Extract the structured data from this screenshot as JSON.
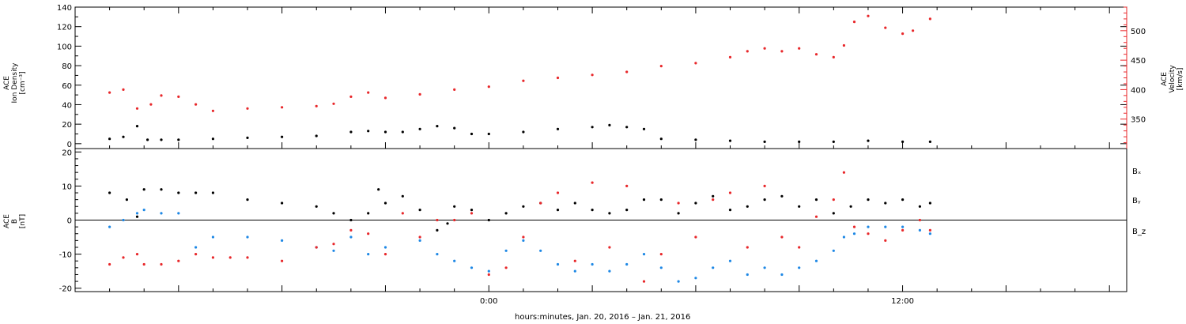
{
  "chart_data": [
    {
      "type": "scatter",
      "panel": "top",
      "ylabel_left": [
        "ACE",
        "Ion Density",
        "[cm⁻³]"
      ],
      "ylabel_right": [
        "ACE",
        "Velocity",
        "[km/s]"
      ],
      "left_axis": {
        "min": -5,
        "max": 140,
        "ticks": [
          "0",
          "20",
          "40",
          "60",
          "80",
          "100",
          "120",
          "140"
        ]
      },
      "right_axis": {
        "min": 300,
        "max": 540,
        "color": "#e8272a",
        "ticks": [
          "350",
          "400",
          "450",
          "500"
        ]
      },
      "series": [
        {
          "color": "#000000",
          "axis": "left",
          "x": [
            -11.0,
            -10.6,
            -10.2,
            -9.9,
            -9.5,
            -9.0,
            -8.0,
            -7.0,
            -6.0,
            -5.0,
            -4.0,
            -3.5,
            -3.0,
            -2.5,
            -2.0,
            -1.5,
            -1.0,
            -0.5,
            0.0,
            1.0,
            2.0,
            3.0,
            3.5,
            4.0,
            4.5,
            5.0,
            6.0,
            7.0,
            8.0,
            9.0,
            10.0,
            11.0,
            12.0,
            12.8
          ],
          "y": [
            5,
            7,
            18,
            4,
            4,
            4,
            5,
            6,
            7,
            8,
            12,
            13,
            12,
            12,
            15,
            18,
            16,
            10,
            10,
            12,
            15,
            17,
            19,
            17,
            15,
            5,
            4,
            3,
            2,
            2,
            2,
            3,
            2,
            2
          ]
        },
        {
          "color": "#e8272a",
          "axis": "right",
          "x": [
            -11.0,
            -10.6,
            -10.2,
            -9.8,
            -9.5,
            -9.0,
            -8.5,
            -8.0,
            -7.0,
            -6.0,
            -5.0,
            -4.5,
            -4.0,
            -3.5,
            -3.0,
            -2.0,
            -1.0,
            0.0,
            1.0,
            2.0,
            3.0,
            4.0,
            5.0,
            6.0,
            7.0,
            7.5,
            8.0,
            8.5,
            9.0,
            9.5,
            10.0,
            10.3,
            10.6,
            11.0,
            11.5,
            12.0,
            12.3,
            12.8
          ],
          "y": [
            395,
            400,
            368,
            375,
            390,
            388,
            375,
            364,
            368,
            370,
            372,
            376,
            388,
            395,
            386,
            392,
            400,
            405,
            415,
            420,
            425,
            430,
            440,
            445,
            455,
            465,
            470,
            465,
            470,
            460,
            455,
            475,
            515,
            525,
            505,
            495,
            500,
            520
          ]
        }
      ]
    },
    {
      "type": "scatter",
      "panel": "bottom",
      "ylabel_left": [
        "ACE",
        "B",
        "[nT]"
      ],
      "left_axis": {
        "min": -21,
        "max": 21,
        "ticks": [
          "-20",
          "-10",
          "0",
          "10",
          "20"
        ]
      },
      "legend": [
        "Bₓ",
        "Bᵧ",
        "B_z"
      ],
      "series": [
        {
          "name": "Bₓ",
          "color": "#000000",
          "x": [
            -11.0,
            -10.5,
            -10.2,
            -10.0,
            -9.5,
            -9.0,
            -8.5,
            -8.0,
            -7.0,
            -6.0,
            -5.0,
            -4.5,
            -4.0,
            -3.5,
            -3.2,
            -3.0,
            -2.5,
            -2.0,
            -1.5,
            -1.2,
            -1.0,
            -0.5,
            0.0,
            0.5,
            1.0,
            1.5,
            2.0,
            2.5,
            3.0,
            3.5,
            4.0,
            4.5,
            5.0,
            5.5,
            6.0,
            6.5,
            7.0,
            7.5,
            8.0,
            8.5,
            9.0,
            9.5,
            10.0,
            10.5,
            11.0,
            11.5,
            12.0,
            12.5,
            12.8
          ],
          "y": [
            8,
            6,
            1,
            9,
            9,
            8,
            8,
            8,
            6,
            5,
            4,
            2,
            0,
            2,
            9,
            5,
            7,
            3,
            -3,
            -1,
            4,
            3,
            0,
            2,
            4,
            5,
            3,
            5,
            3,
            2,
            3,
            6,
            6,
            2,
            5,
            7,
            3,
            4,
            6,
            7,
            4,
            6,
            2,
            4,
            6,
            5,
            6,
            4,
            5
          ]
        },
        {
          "name": "Bᵧ",
          "color": "#1e88e5",
          "x": [
            -11.0,
            -10.6,
            -10.2,
            -10.0,
            -9.5,
            -9.0,
            -8.5,
            -8.0,
            -7.0,
            -6.0,
            -5.0,
            -4.5,
            -4.0,
            -3.5,
            -3.0,
            -2.0,
            -1.5,
            -1.0,
            -0.5,
            0.0,
            0.5,
            1.0,
            1.5,
            2.0,
            2.5,
            3.0,
            3.5,
            4.0,
            4.5,
            5.0,
            5.5,
            6.0,
            6.5,
            7.0,
            7.5,
            8.0,
            8.5,
            9.0,
            9.5,
            10.0,
            10.3,
            10.6,
            11.0,
            11.5,
            12.0,
            12.5,
            12.8
          ],
          "y": [
            -2,
            0,
            2,
            3,
            2,
            2,
            -8,
            -5,
            -5,
            -6,
            -8,
            -9,
            -5,
            -10,
            -8,
            -6,
            -10,
            -12,
            -14,
            -15,
            -9,
            -6,
            -9,
            -13,
            -15,
            -13,
            -15,
            -13,
            -10,
            -14,
            -18,
            -17,
            -14,
            -12,
            -16,
            -14,
            -16,
            -14,
            -12,
            -9,
            -5,
            -4,
            -2,
            -2,
            -2,
            -3,
            -4
          ]
        },
        {
          "name": "B_z",
          "color": "#e8272a",
          "x": [
            -11.0,
            -10.6,
            -10.2,
            -10.0,
            -9.5,
            -9.0,
            -8.5,
            -8.0,
            -7.5,
            -7.0,
            -6.0,
            -5.0,
            -4.5,
            -4.0,
            -3.5,
            -3.0,
            -2.5,
            -2.0,
            -1.5,
            -1.0,
            -0.5,
            0.0,
            0.5,
            1.0,
            1.5,
            2.0,
            2.5,
            3.0,
            3.5,
            4.0,
            4.5,
            5.0,
            5.5,
            6.0,
            6.5,
            7.0,
            7.5,
            8.0,
            8.5,
            9.0,
            9.5,
            10.0,
            10.3,
            10.6,
            11.0,
            11.5,
            12.0,
            12.5,
            12.8
          ],
          "y": [
            -13,
            -11,
            -10,
            -13,
            -13,
            -12,
            -10,
            -11,
            -11,
            -11,
            -12,
            -8,
            -7,
            -3,
            -4,
            -10,
            2,
            -5,
            0,
            0,
            2,
            -16,
            -14,
            -5,
            5,
            8,
            -12,
            11,
            -8,
            10,
            -18,
            -10,
            5,
            -5,
            6,
            8,
            -8,
            10,
            -5,
            -8,
            1,
            6,
            14,
            -2,
            -4,
            -6,
            -3,
            0,
            -3
          ]
        }
      ]
    }
  ],
  "xaxis": {
    "min": -12,
    "max": 18.5,
    "tick_labels": [
      {
        "x": 0,
        "text": "0:00"
      },
      {
        "x": 12,
        "text": "12:00"
      }
    ],
    "label": "hours:minutes, Jan. 20, 2016 – Jan. 21, 2016"
  }
}
